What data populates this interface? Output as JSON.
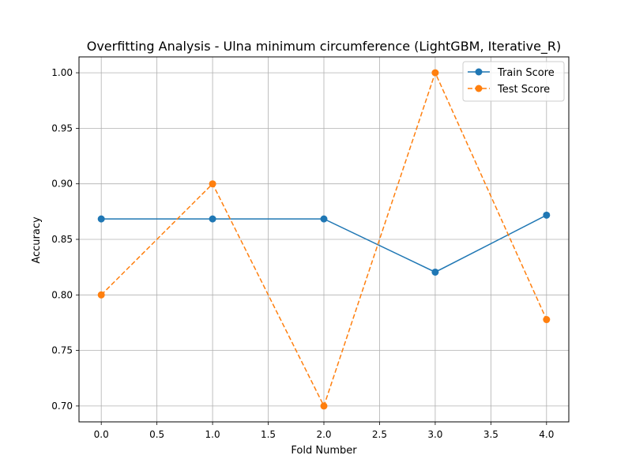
{
  "chart_data": {
    "type": "line",
    "title": "Overfitting Analysis - Ulna minimum circumference (LightGBM, Iterative_R)",
    "xlabel": "Fold Number",
    "ylabel": "Accuracy",
    "x": [
      0,
      1,
      2,
      3,
      4
    ],
    "xlim": [
      -0.2,
      4.2
    ],
    "ylim": [
      0.6857,
      1.0143
    ],
    "xticks": [
      0.0,
      0.5,
      1.0,
      1.5,
      2.0,
      2.5,
      3.0,
      3.5,
      4.0
    ],
    "yticks": [
      0.7,
      0.75,
      0.8,
      0.85,
      0.9,
      0.95,
      1.0
    ],
    "xtick_labels": [
      "0.0",
      "0.5",
      "1.0",
      "1.5",
      "2.0",
      "2.5",
      "3.0",
      "3.5",
      "4.0"
    ],
    "ytick_labels": [
      "0.70",
      "0.75",
      "0.80",
      "0.85",
      "0.90",
      "0.95",
      "1.00"
    ],
    "grid": true,
    "legend_position": "top-right",
    "series": [
      {
        "name": "Train Score",
        "values": [
          0.8684,
          0.8684,
          0.8684,
          0.8205,
          0.8718
        ],
        "color": "#1f77b4",
        "line_style": "solid",
        "marker": "circle"
      },
      {
        "name": "Test Score",
        "values": [
          0.8,
          0.9,
          0.7,
          1.0,
          0.7778
        ],
        "color": "#ff7f0e",
        "line_style": "dashed",
        "marker": "circle"
      }
    ]
  }
}
